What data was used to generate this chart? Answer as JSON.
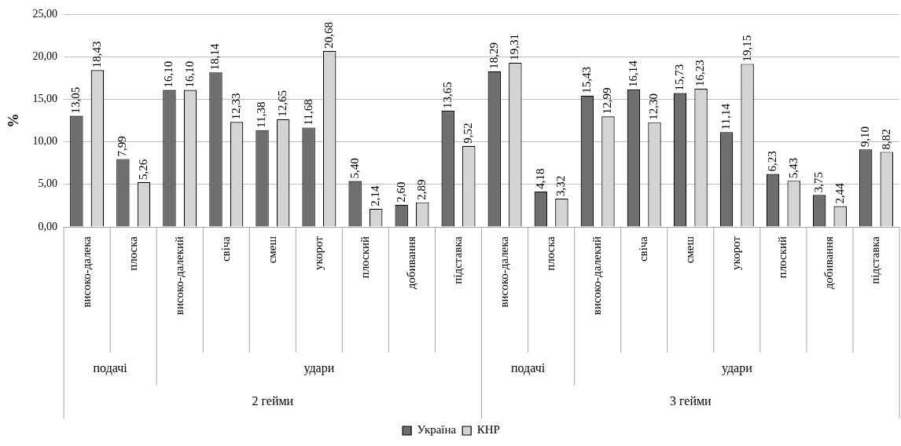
{
  "chart_data": {
    "type": "bar",
    "ylabel": "%",
    "categories": [
      "високо-далека",
      "плоска",
      "високо-далекий",
      "свіча",
      "смеш",
      "укорот",
      "плоский",
      "добивання",
      "підставка",
      "високо-далека",
      "плоска",
      "високо-далекий",
      "свіча",
      "смеш",
      "укорот",
      "плоский",
      "добивання",
      "підставка"
    ],
    "series": [
      {
        "name": "Україна",
        "color": "#6e6e6e",
        "values": [
          13.05,
          7.99,
          16.1,
          18.14,
          11.38,
          11.68,
          5.4,
          2.6,
          13.65,
          18.29,
          4.18,
          15.43,
          16.14,
          15.73,
          11.14,
          6.23,
          3.75,
          9.1
        ],
        "value_labels": [
          "13,05",
          "7,99",
          "16,10",
          "18,14",
          "11,38",
          "11,68",
          "5,40",
          "2,60",
          "13,65",
          "18,29",
          "4,18",
          "15,43",
          "16,14",
          "15,73",
          "11,14",
          "6,23",
          "3,75",
          "9,10"
        ]
      },
      {
        "name": "КНР",
        "color": "#d4d4d4",
        "values": [
          18.43,
          5.26,
          16.1,
          12.33,
          12.65,
          20.68,
          2.14,
          2.89,
          9.52,
          19.31,
          3.32,
          12.99,
          12.3,
          16.23,
          19.15,
          5.43,
          2.44,
          8.82
        ],
        "value_labels": [
          "18,43",
          "5,26",
          "16,10",
          "12,33",
          "12,65",
          "20,68",
          "2,14",
          "2,89",
          "9,52",
          "19,31",
          "3,32",
          "12,99",
          "12,30",
          "16,23",
          "19,15",
          "5,43",
          "2,44",
          "8,82"
        ]
      }
    ],
    "ylim": [
      0,
      25
    ],
    "yticks": [
      {
        "value": 0,
        "label": "0,00"
      },
      {
        "value": 5,
        "label": "5,00"
      },
      {
        "value": 10,
        "label": "10,00"
      },
      {
        "value": 15,
        "label": "15,00"
      },
      {
        "value": 20,
        "label": "20,00"
      },
      {
        "value": 25,
        "label": "25,00"
      }
    ],
    "grid": "y",
    "legend": "bottom",
    "annotations": [
      "подачі",
      "удари",
      "подачі",
      "удари",
      "2 гейми",
      "3 гейми"
    ]
  }
}
